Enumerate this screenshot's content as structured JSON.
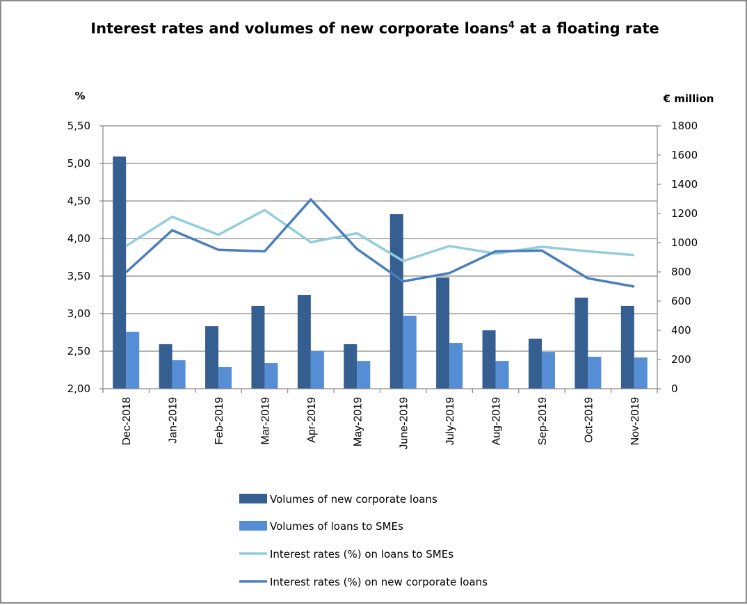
{
  "chart_data": {
    "type": "bar",
    "combo": "bar+line (dual axis)",
    "title": "Interest rates and volumes of new corporate loans",
    "title_superscript": "4",
    "title_suffix": " at a floating rate",
    "xlabel": "",
    "ylabel_left": "%",
    "ylabel_right": "€ million",
    "categories": [
      "Dec-2018",
      "Jan-2019",
      "Feb-2019",
      "Mar-2019",
      "Apr-2019",
      "May-2019",
      "June-2019",
      "July-2019",
      "Aug-2019",
      "Sep-2019",
      "Oct-2019",
      "Nov-2019"
    ],
    "ylim_left": [
      2.0,
      5.5
    ],
    "ylim_right": [
      0,
      1800
    ],
    "left_ticks": [
      "2,00",
      "2,50",
      "3,00",
      "3,50",
      "4,00",
      "4,50",
      "5,00",
      "5,50"
    ],
    "left_tick_values": [
      2.0,
      2.5,
      3.0,
      3.5,
      4.0,
      4.5,
      5.0,
      5.5
    ],
    "right_ticks": [
      "0",
      "200",
      "400",
      "600",
      "800",
      "1000",
      "1200",
      "1400",
      "1600",
      "1800"
    ],
    "right_tick_values": [
      0,
      200,
      400,
      600,
      800,
      1000,
      1200,
      1400,
      1600,
      1800
    ],
    "grid": true,
    "legend_position": "bottom",
    "series": [
      {
        "name": "Volumes of new corporate loans",
        "kind": "bar",
        "axis": "right",
        "color": "#355f91",
        "values": [
          1590,
          305,
          428,
          567,
          643,
          305,
          1195,
          762,
          400,
          343,
          624,
          567
        ]
      },
      {
        "name": "Volumes of loans to SMEs",
        "kind": "bar",
        "axis": "right",
        "color": "#558ed5",
        "values": [
          390,
          195,
          148,
          176,
          257,
          190,
          500,
          314,
          190,
          252,
          219,
          214
        ]
      },
      {
        "name": "Interest rates (%) on loans to SMEs",
        "kind": "line",
        "axis": "left",
        "color": "#93cddd",
        "values": [
          3.9,
          4.29,
          4.05,
          4.38,
          3.95,
          4.07,
          3.7,
          3.9,
          3.8,
          3.89,
          3.83,
          3.78
        ]
      },
      {
        "name": "Interest rates (%) on new corporate loans",
        "kind": "line",
        "axis": "left",
        "color": "#4a7ebb",
        "values": [
          3.55,
          4.11,
          3.85,
          3.83,
          4.52,
          3.86,
          3.43,
          3.54,
          3.83,
          3.84,
          3.47,
          3.36
        ]
      }
    ]
  }
}
